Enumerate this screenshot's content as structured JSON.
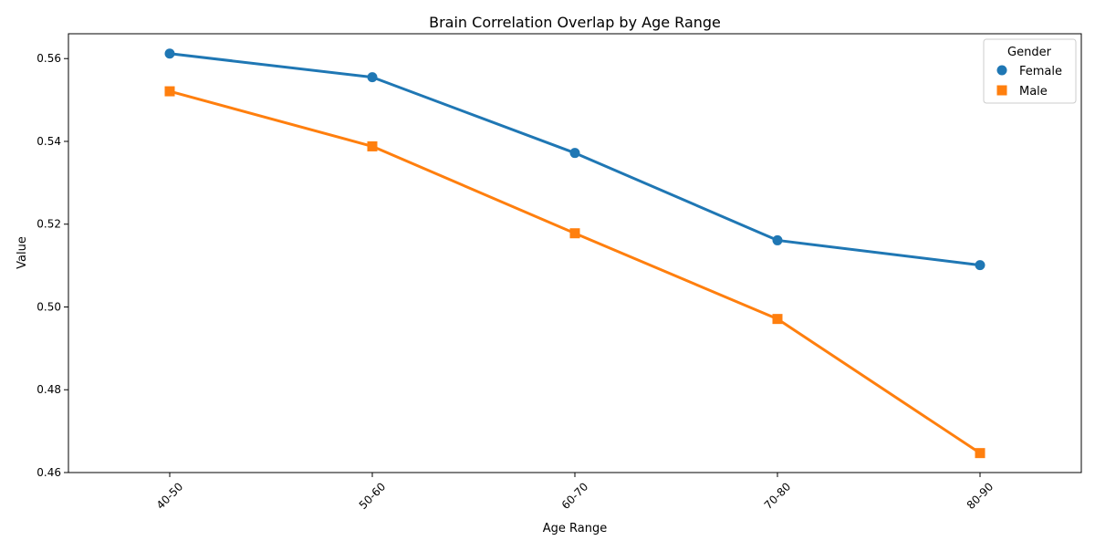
{
  "chart_data": {
    "type": "line",
    "title": "Brain Correlation Overlap by Age Range",
    "xlabel": "Age Range",
    "ylabel": "Value",
    "categories": [
      "40-50",
      "50-60",
      "60-70",
      "70-80",
      "80-90"
    ],
    "ylim": [
      0.46,
      0.566
    ],
    "yticks": [
      0.46,
      0.48,
      0.5,
      0.52,
      0.54,
      0.56
    ],
    "ytick_labels": [
      "0.46",
      "0.48",
      "0.50",
      "0.52",
      "0.54",
      "0.56"
    ],
    "grid": false,
    "legend": {
      "title": "Gender",
      "placement": "top-right"
    },
    "series": [
      {
        "name": "Female",
        "color": "#1f77b4",
        "marker": "circle",
        "values": [
          0.5612,
          0.5555,
          0.5372,
          0.5161,
          0.5101
        ]
      },
      {
        "name": "Male",
        "color": "#ff7f0e",
        "marker": "square",
        "values": [
          0.5521,
          0.5388,
          0.5178,
          0.4971,
          0.4647
        ]
      }
    ]
  }
}
